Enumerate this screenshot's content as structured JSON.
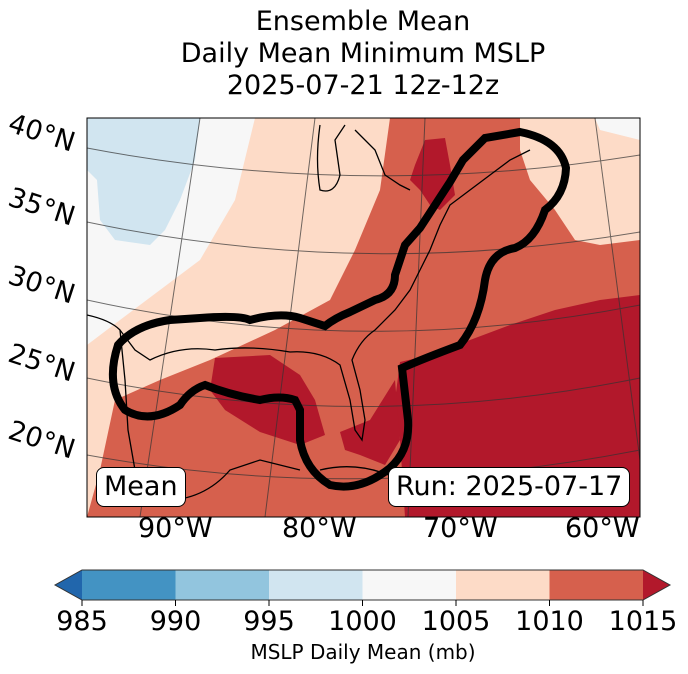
{
  "title": {
    "line1": "Ensemble Mean",
    "line2": "Daily Mean Minimum MSLP",
    "line3": "2025-07-21 12z-12z"
  },
  "map": {
    "lat_labels": [
      "40°N",
      "35°N",
      "30°N",
      "25°N",
      "20°N"
    ],
    "lon_labels": [
      "90°W",
      "80°W",
      "70°W",
      "60°W"
    ],
    "annotation_left": "Mean",
    "annotation_right": "Run: 2025-07-17",
    "contour_color": "#000000"
  },
  "colorbar": {
    "label": "MSLP Daily Mean (mb)",
    "ticks": [
      "985",
      "990",
      "995",
      "1000",
      "1005",
      "1010",
      "1015"
    ],
    "bins": [
      {
        "range": "<985",
        "color": "#2166ac"
      },
      {
        "range": "985-990",
        "color": "#4393c3"
      },
      {
        "range": "990-995",
        "color": "#92c5de"
      },
      {
        "range": "995-1000",
        "color": "#d1e5f0"
      },
      {
        "range": "1000-1005",
        "color": "#f7f7f7"
      },
      {
        "range": "1005-1010",
        "color": "#fddbc7"
      },
      {
        "range": "1010-1015",
        "color": "#d6604d"
      },
      {
        "range": ">1015",
        "color": "#b2182b"
      }
    ],
    "extend": "both"
  }
}
